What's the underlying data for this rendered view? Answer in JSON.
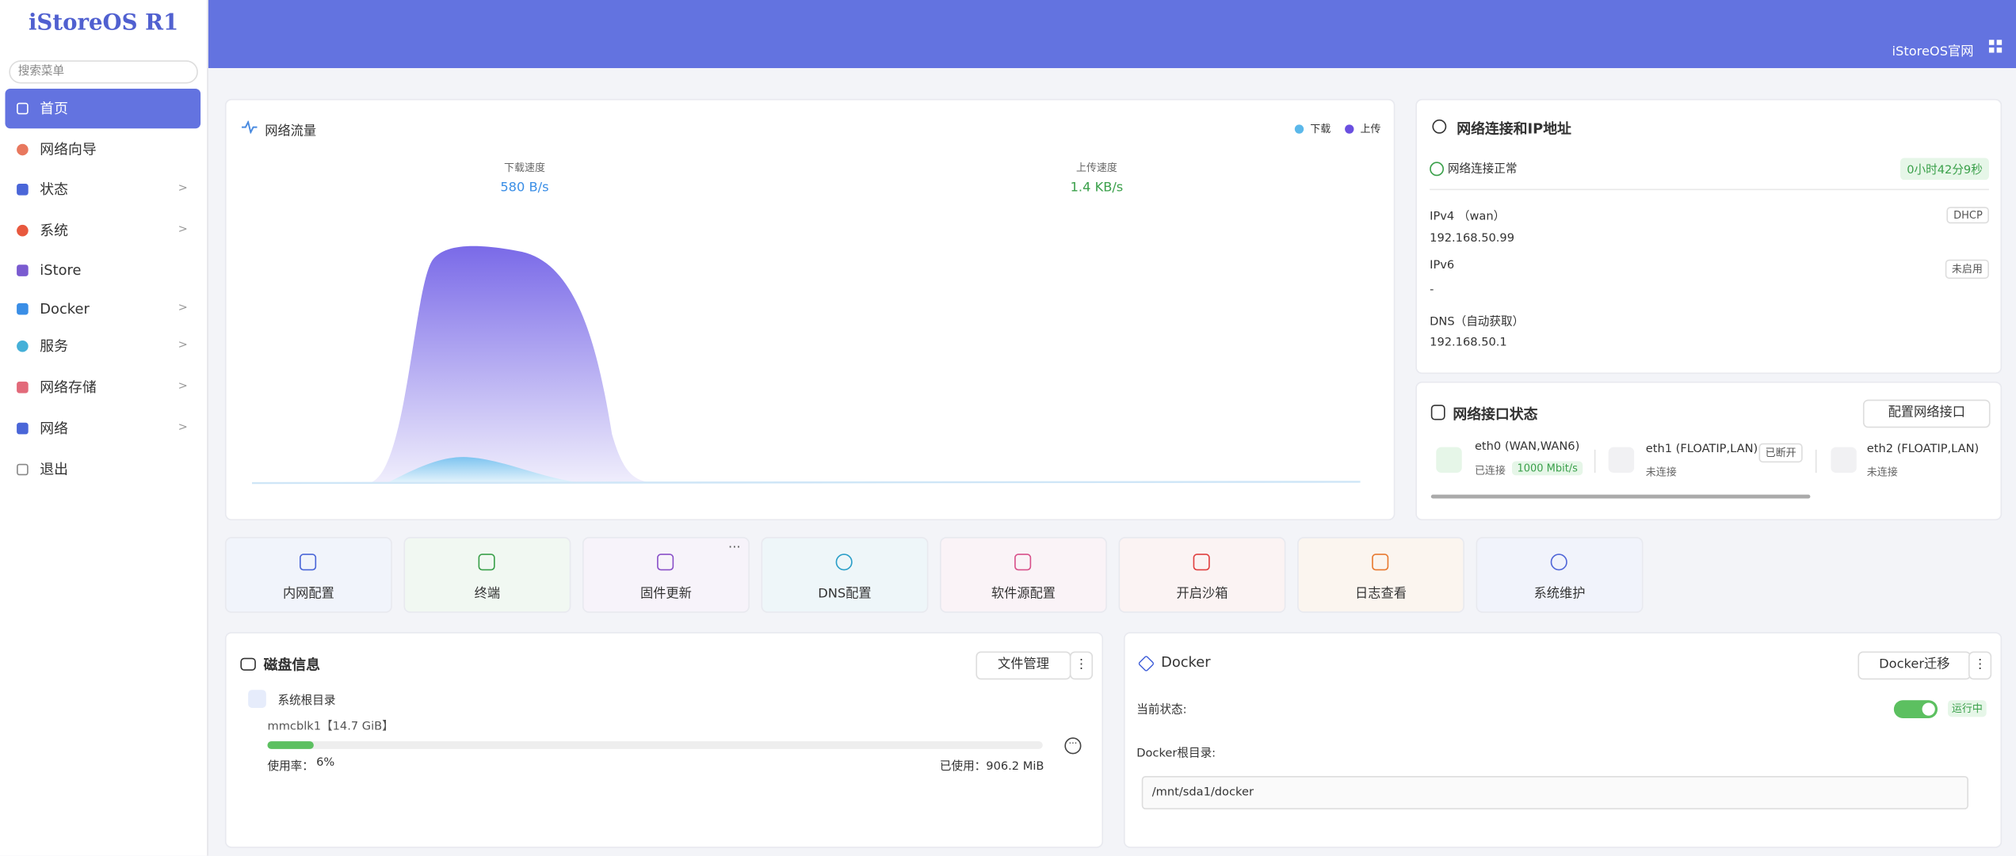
{
  "sidebar": {
    "logo": "iStoreOS R1",
    "search_placeholder": "搜索菜单",
    "menu": [
      "首页",
      "网络向导",
      "状态",
      "系统",
      "iStore",
      "Docker",
      "服务",
      "网络存储",
      "网络",
      "退出"
    ]
  },
  "header": {
    "link": "iStoreOS官网"
  },
  "traffic": {
    "title": "网络流量",
    "legend": [
      "下载",
      "上传"
    ],
    "download_label": "下载速度",
    "download_value": "580 B/s",
    "upload_label": "上传速度",
    "upload_value": "1.4 KB/s"
  },
  "network": {
    "title": "网络连接和IP地址",
    "status": "网络连接正常",
    "uptime": "0小时42分9秒",
    "rows": [
      {
        "label": "IPv4 （wan）",
        "badge": "DHCP",
        "value": "192.168.50.99"
      },
      {
        "label": "IPv6",
        "badge": "未启用",
        "value": "-"
      },
      {
        "label": "DNS（自动获取）",
        "value": "192.168.50.1"
      }
    ]
  },
  "interfaces": {
    "title": "网络接口状态",
    "button": "配置网络接口",
    "items": [
      {
        "name": "eth0 (WAN,WAN6)",
        "status": "已连接",
        "speed": "1000 Mbit/s"
      },
      {
        "name": "eth1 (FLOATIP,LAN)",
        "badge": "已断开",
        "status": "未连接"
      },
      {
        "name": "eth2 (FLOATIP,LAN)",
        "status": "未连接"
      }
    ]
  },
  "shortcuts": [
    "内网配置",
    "终端",
    "固件更新",
    "DNS配置",
    "软件源配置",
    "开启沙箱",
    "日志查看",
    "系统维护"
  ],
  "disk": {
    "title": "磁盘信息",
    "button": "文件管理",
    "mount": "系统根目录",
    "device": "mmcblk1【14.7 GiB】",
    "usage_label": "使用率：",
    "usage": {
      "value": 6,
      "label": "6%"
    },
    "used_label": "已使用：",
    "used": "906.2 MiB"
  },
  "docker": {
    "title": "Docker",
    "button": "Docker迁移",
    "state_label": "当前状态:",
    "state": "运行中",
    "root_label": "Docker根目录:",
    "root": "/mnt/sda1/docker"
  }
}
